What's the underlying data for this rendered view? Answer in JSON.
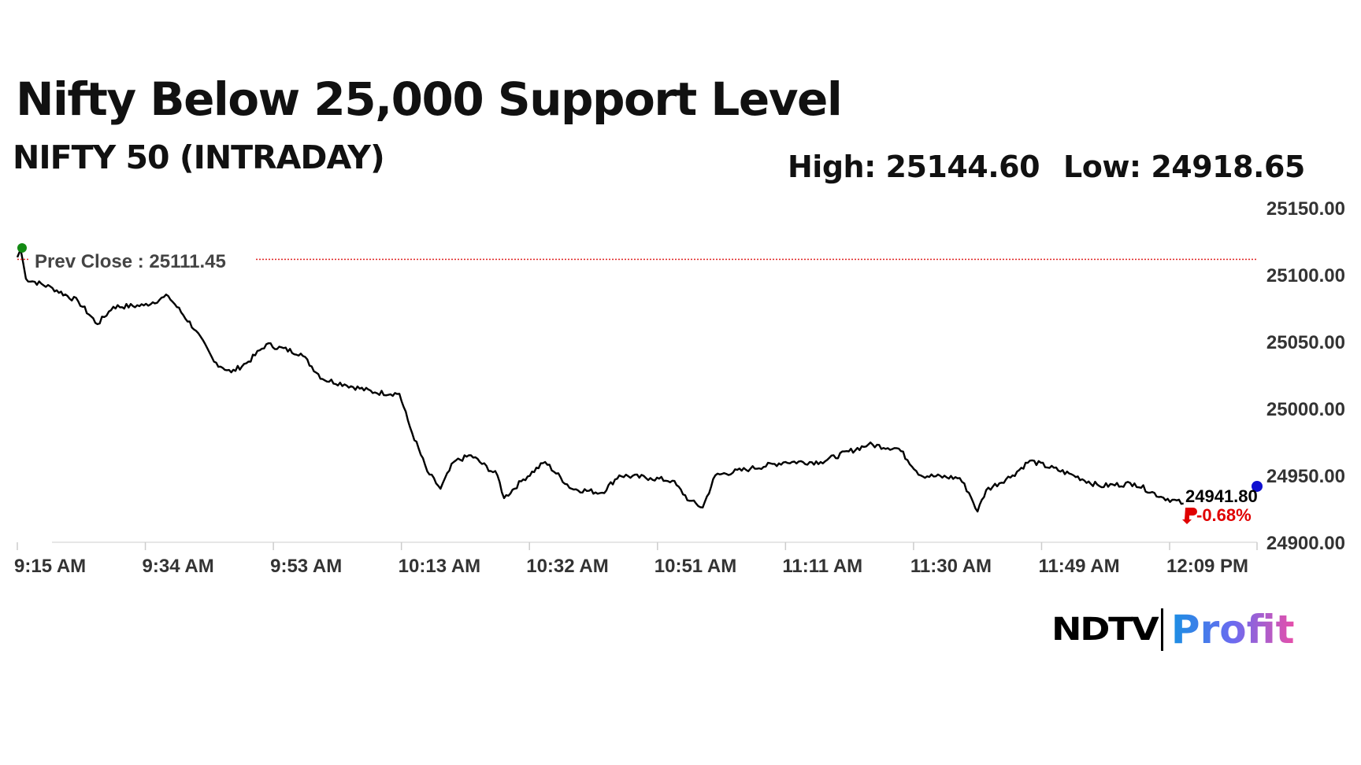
{
  "header": {
    "title": "Nifty Below 25,000 Support Level",
    "subtitle": "NIFTY 50 (INTRADAY)",
    "high": "High: 25144.60",
    "low": "Low: 24918.65"
  },
  "logo": {
    "ndtv": "NDTV",
    "profit": "Profit"
  },
  "chart_data": {
    "type": "line",
    "title": "NIFTY 50 (INTRADAY)",
    "ylim": [
      24900,
      25150
    ],
    "y_ticks": [
      "25150.00",
      "25100.00",
      "25050.00",
      "25000.00",
      "24950.00",
      "24900.00"
    ],
    "y_tick_values": [
      25150,
      25100,
      25050,
      25000,
      24950,
      24900
    ],
    "x_ticks": [
      "9:15 AM",
      "9:34 AM",
      "9:53 AM",
      "10:13 AM",
      "10:32 AM",
      "10:51 AM",
      "11:11 AM",
      "11:30 AM",
      "11:49 AM",
      "12:09 PM"
    ],
    "x_unit": "minutes after 9:15 AM",
    "x_range": [
      0,
      174
    ],
    "prev_close": {
      "label": "Prev Close : 25111.45",
      "value": 25111.45
    },
    "last": {
      "value_label": "24941.80",
      "change_label": "-0.68%",
      "value": 24941.8
    },
    "colors": {
      "line": "#000000",
      "prev_close": "#e02020",
      "change": "#e00000",
      "start_dot": "#138a13",
      "end_dot": "#1010d0"
    },
    "series": [
      {
        "name": "NIFTY 50",
        "x": [
          0,
          0.5,
          1.3,
          5.3,
          9.2,
          12.1,
          14.5,
          19.1,
          22.8,
          27.0,
          29.7,
          32.3,
          34.9,
          37.6,
          42.8,
          46.1,
          49.4,
          54.0,
          57.7,
          59.3,
          61.9,
          63.9,
          65.9,
          68.5,
          72.5,
          73.5,
          76.4,
          79.7,
          83.7,
          88.3,
          90.9,
          95.6,
          98.9,
          101.5,
          103.5,
          105.4,
          110.7,
          116.0,
          121.3,
          128.5,
          133.1,
          136.4,
          142.3,
          143.7,
          145.0,
          146.3,
          150.3,
          152.9,
          159.5,
          163.4,
          168.7,
          172.7,
          176.1
        ],
        "y": [
          25113,
          25119,
          25097,
          25090,
          25080,
          25063,
          25076,
          25077,
          25084,
          25058,
          25035,
          25027,
          25035,
          25048,
          25041,
          25022,
          25018,
          25012,
          25011,
          24986,
          24953,
          24940,
          24960,
          24965,
          24950,
          24933,
          24947,
          24960,
          24940,
          24937,
          24950,
          24948,
          24946,
          24931,
          24926,
          24950,
          24955,
          24960,
          24960,
          24973,
          24970,
          24950,
          24948,
          24937,
          24923,
          24939,
          24950,
          24961,
          24950,
          24942,
          24944,
          24934,
          24929
        ]
      }
    ]
  }
}
